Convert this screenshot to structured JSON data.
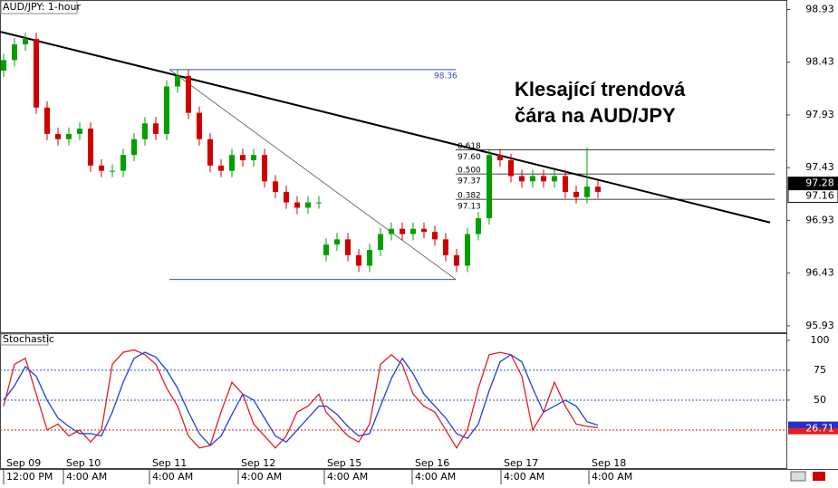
{
  "chart_data": [
    {
      "type": "candlestick",
      "title": "AUD/JPY: 1-hour",
      "annotation": [
        "Klesající trendová",
        "čára na AUD/JPY"
      ],
      "x": [
        1,
        4,
        7,
        10,
        13,
        16,
        19,
        22,
        25,
        28,
        31,
        34,
        37,
        40,
        43,
        46,
        49,
        52,
        55,
        58,
        61,
        64,
        67,
        70,
        73,
        76,
        79,
        82,
        85,
        88,
        90,
        93,
        96,
        99,
        102,
        105,
        108,
        111,
        114,
        117,
        120,
        123,
        126,
        129,
        132,
        135,
        138,
        141,
        144,
        147,
        150,
        153,
        156,
        159,
        162,
        165
      ],
      "open": [
        98.35,
        98.45,
        98.6,
        98.65,
        98.0,
        97.75,
        97.7,
        97.75,
        97.8,
        97.45,
        97.4,
        97.4,
        97.55,
        97.7,
        97.85,
        97.75,
        98.2,
        98.3,
        97.95,
        97.7,
        97.45,
        97.4,
        97.55,
        97.5,
        97.55,
        97.3,
        97.2,
        97.1,
        97.05,
        97.1,
        96.6,
        96.7,
        96.75,
        96.6,
        96.5,
        96.65,
        96.8,
        96.85,
        96.8,
        96.85,
        96.82,
        96.75,
        96.6,
        96.5,
        96.8,
        96.95,
        97.55,
        97.5,
        97.35,
        97.3,
        97.35,
        97.3,
        97.35,
        97.2,
        97.15,
        97.25
      ],
      "high": [
        98.51,
        98.66,
        98.71,
        98.71,
        98.06,
        97.81,
        97.81,
        97.86,
        97.86,
        97.51,
        97.46,
        97.61,
        97.76,
        97.91,
        97.91,
        98.26,
        98.36,
        98.36,
        98.01,
        97.76,
        97.51,
        97.61,
        97.61,
        97.61,
        97.61,
        97.36,
        97.26,
        97.16,
        97.16,
        97.16,
        96.76,
        96.81,
        96.81,
        96.66,
        96.71,
        96.86,
        96.91,
        96.91,
        96.91,
        96.91,
        96.88,
        96.81,
        96.66,
        96.86,
        97.01,
        97.61,
        97.61,
        97.56,
        97.41,
        97.41,
        97.41,
        97.41,
        97.41,
        97.26,
        97.62,
        97.31
      ],
      "low": [
        98.29,
        98.39,
        98.54,
        97.94,
        97.69,
        97.64,
        97.64,
        97.69,
        97.39,
        97.34,
        97.34,
        97.34,
        97.49,
        97.64,
        97.69,
        97.69,
        98.14,
        97.89,
        97.64,
        97.39,
        97.34,
        97.34,
        97.44,
        97.44,
        97.24,
        97.14,
        97.04,
        96.99,
        96.99,
        97.04,
        96.54,
        96.64,
        96.54,
        96.44,
        96.44,
        96.59,
        96.74,
        96.74,
        96.74,
        96.76,
        96.69,
        96.54,
        96.44,
        96.44,
        96.74,
        96.89,
        97.44,
        97.29,
        97.24,
        97.24,
        97.24,
        97.24,
        97.14,
        97.09,
        97.09,
        97.14
      ],
      "close": [
        98.45,
        98.6,
        98.65,
        98.0,
        97.75,
        97.7,
        97.75,
        97.8,
        97.45,
        97.4,
        97.4,
        97.55,
        97.7,
        97.85,
        97.75,
        98.2,
        98.3,
        97.95,
        97.7,
        97.45,
        97.4,
        97.55,
        97.5,
        97.55,
        97.3,
        97.2,
        97.1,
        97.05,
        97.1,
        97.1,
        96.7,
        96.75,
        96.6,
        96.5,
        96.65,
        96.8,
        96.85,
        96.8,
        96.85,
        96.82,
        96.75,
        96.6,
        96.5,
        96.8,
        96.95,
        97.55,
        97.5,
        97.35,
        97.3,
        97.35,
        97.3,
        97.35,
        97.2,
        97.15,
        97.25,
        97.2
      ],
      "up_color": "#00a000",
      "down_color": "#d00000",
      "xlim": [
        0,
        217
      ],
      "ylim": [
        95.86,
        99.02
      ],
      "yticks": [
        98.93,
        98.43,
        97.93,
        97.43,
        96.93,
        96.43,
        95.93
      ],
      "xticks": [
        {
          "value": 1,
          "label": "Sep 09"
        },
        {
          "value": 17.5,
          "label": "Sep 10"
        },
        {
          "value": 41.25,
          "label": "Sep 11"
        },
        {
          "value": 65.75,
          "label": "Sep 12"
        },
        {
          "value": 89.5,
          "label": "Sep 15"
        },
        {
          "value": 113.75,
          "label": "Sep 16"
        },
        {
          "value": 138.25,
          "label": "Sep 17"
        },
        {
          "value": 162.5,
          "label": "Sep 18"
        }
      ],
      "xtick_times": [
        "12:00 PM",
        "4:00 AM",
        "4:00 AM",
        "4:00 AM",
        "4:00 AM",
        "4:00 AM",
        "4:00 AM",
        "4:00 AM"
      ],
      "trendline": {
        "x": [
          0,
          212.5
        ],
        "y": [
          98.72,
          96.91
        ]
      },
      "fib": {
        "x": [
          46.75,
          125.75
        ],
        "high": 98.36,
        "high_label": "98.36",
        "low": 96.37,
        "levels_x_end": 213.75,
        "ratios": [
          0.618,
          {
            "value": 0.5,
            "label": "0.500"
          },
          0.382
        ],
        "prices": [
          {
            "value": 97.6,
            "label": "97.60"
          },
          97.37,
          97.13
        ]
      },
      "price_markers": [
        97.28,
        97.16
      ]
    },
    {
      "type": "line",
      "title": "Stochastic",
      "x": [
        1,
        4,
        7,
        10,
        13,
        16,
        19,
        22,
        25,
        28,
        31,
        34,
        37,
        40,
        43,
        46,
        49,
        52,
        55,
        58,
        61,
        64,
        67,
        70,
        73,
        76,
        79,
        82,
        85,
        88,
        90,
        93,
        96,
        99,
        102,
        105,
        108,
        111,
        114,
        117,
        120,
        123,
        126,
        129,
        132,
        135,
        138,
        141,
        144,
        147,
        150,
        153,
        156,
        159,
        162,
        165
      ],
      "series": [
        {
          "color": "#e02020",
          "values": [
            45,
            80,
            85,
            55,
            25,
            30,
            20,
            25,
            15,
            25,
            80,
            90,
            92,
            88,
            80,
            60,
            45,
            20,
            10,
            12,
            40,
            65,
            55,
            30,
            20,
            10,
            20,
            40,
            45,
            55,
            40,
            30,
            20,
            15,
            30,
            80,
            88,
            80,
            55,
            45,
            40,
            25,
            10,
            25,
            60,
            88,
            90,
            88,
            70,
            25,
            40,
            65,
            45,
            30,
            28,
            27
          ]
        },
        {
          "color": "#2040e0",
          "values": [
            50,
            62,
            78,
            70,
            50,
            35,
            28,
            22,
            22,
            20,
            40,
            65,
            85,
            90,
            86,
            75,
            60,
            40,
            22,
            12,
            20,
            38,
            55,
            50,
            35,
            20,
            15,
            25,
            35,
            45,
            45,
            38,
            28,
            20,
            22,
            45,
            68,
            85,
            72,
            55,
            45,
            35,
            22,
            18,
            30,
            58,
            82,
            88,
            82,
            60,
            40,
            45,
            50,
            45,
            32,
            29
          ]
        }
      ],
      "xlim": [
        0,
        217
      ],
      "ylim": [
        -7.6,
        106
      ],
      "yticks": [
        100,
        75,
        50
      ],
      "levels": [
        75,
        50,
        25
      ],
      "level_colors": [
        "#3050c0",
        "#3050c0",
        "#d02020"
      ],
      "last_value": 26.71
    }
  ]
}
